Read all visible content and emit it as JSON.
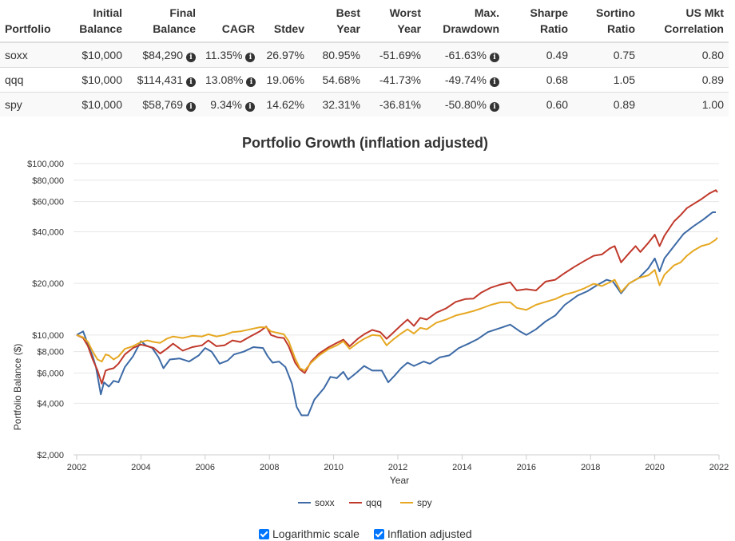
{
  "table": {
    "headers": [
      [
        "Portfolio"
      ],
      [
        "Initial",
        "Balance"
      ],
      [
        "Final",
        "Balance"
      ],
      [
        "CAGR"
      ],
      [
        "Stdev"
      ],
      [
        "Best",
        "Year"
      ],
      [
        "Worst",
        "Year"
      ],
      [
        "Max.",
        "Drawdown"
      ],
      [
        "Sharpe",
        "Ratio"
      ],
      [
        "Sortino",
        "Ratio"
      ],
      [
        "US Mkt",
        "Correlation"
      ]
    ],
    "rows": [
      {
        "portfolio": "soxx",
        "initial": "$10,000",
        "final": "$84,290",
        "cagr": "11.35%",
        "stdev": "26.97%",
        "best": "80.95%",
        "worst": "-51.69%",
        "drawdown": "-61.63%",
        "sharpe": "0.49",
        "sortino": "0.75",
        "corr": "0.80"
      },
      {
        "portfolio": "qqq",
        "initial": "$10,000",
        "final": "$114,431",
        "cagr": "13.08%",
        "stdev": "19.06%",
        "best": "54.68%",
        "worst": "-41.73%",
        "drawdown": "-49.74%",
        "sharpe": "0.68",
        "sortino": "1.05",
        "corr": "0.89"
      },
      {
        "portfolio": "spy",
        "initial": "$10,000",
        "final": "$58,769",
        "cagr": "9.34%",
        "stdev": "14.62%",
        "best": "32.31%",
        "worst": "-36.81%",
        "drawdown": "-50.80%",
        "sharpe": "0.60",
        "sortino": "0.89",
        "corr": "1.00"
      }
    ],
    "info_icon_glyph": "i"
  },
  "chart_data": {
    "type": "line",
    "title": "Portfolio Growth (inflation adjusted)",
    "xlabel": "Year",
    "ylabel": "Portfolio Balance ($)",
    "y_scale": "log",
    "ylim": [
      2000,
      100000
    ],
    "xlim": [
      2001.9,
      2022.0
    ],
    "x_ticks": [
      2002,
      2004,
      2006,
      2008,
      2010,
      2012,
      2014,
      2016,
      2018,
      2020,
      2022
    ],
    "y_ticks": [
      2000,
      4000,
      6000,
      8000,
      10000,
      20000,
      40000,
      60000,
      80000,
      100000
    ],
    "y_tick_labels": [
      "$2,000",
      "$4,000",
      "$6,000",
      "$8,000",
      "$10,000",
      "$20,000",
      "$40,000",
      "$60,000",
      "$80,000",
      "$100,000"
    ],
    "grid": true,
    "legend_position": "bottom",
    "series": [
      {
        "name": "soxx",
        "color": "#3d6aa6",
        "points": [
          [
            2002.0,
            10000
          ],
          [
            2002.2,
            10500
          ],
          [
            2002.35,
            8800
          ],
          [
            2002.5,
            7500
          ],
          [
            2002.6,
            6500
          ],
          [
            2002.75,
            4500
          ],
          [
            2002.85,
            5300
          ],
          [
            2003.0,
            5000
          ],
          [
            2003.15,
            5400
          ],
          [
            2003.3,
            5300
          ],
          [
            2003.5,
            6500
          ],
          [
            2003.75,
            7500
          ],
          [
            2004.0,
            9200
          ],
          [
            2004.15,
            8700
          ],
          [
            2004.35,
            8400
          ],
          [
            2004.55,
            7400
          ],
          [
            2004.7,
            6400
          ],
          [
            2004.9,
            7200
          ],
          [
            2005.2,
            7300
          ],
          [
            2005.5,
            7000
          ],
          [
            2005.8,
            7600
          ],
          [
            2006.0,
            8400
          ],
          [
            2006.2,
            8000
          ],
          [
            2006.45,
            6800
          ],
          [
            2006.7,
            7100
          ],
          [
            2006.9,
            7700
          ],
          [
            2007.2,
            8000
          ],
          [
            2007.5,
            8500
          ],
          [
            2007.8,
            8400
          ],
          [
            2007.95,
            7500
          ],
          [
            2008.1,
            6900
          ],
          [
            2008.3,
            7000
          ],
          [
            2008.5,
            6500
          ],
          [
            2008.7,
            5200
          ],
          [
            2008.85,
            3800
          ],
          [
            2009.0,
            3400
          ],
          [
            2009.2,
            3400
          ],
          [
            2009.4,
            4200
          ],
          [
            2009.7,
            4900
          ],
          [
            2009.9,
            5700
          ],
          [
            2010.1,
            5600
          ],
          [
            2010.3,
            6100
          ],
          [
            2010.45,
            5500
          ],
          [
            2010.7,
            6000
          ],
          [
            2010.95,
            6600
          ],
          [
            2011.2,
            6200
          ],
          [
            2011.5,
            6200
          ],
          [
            2011.7,
            5300
          ],
          [
            2011.9,
            5800
          ],
          [
            2012.1,
            6400
          ],
          [
            2012.3,
            6900
          ],
          [
            2012.5,
            6600
          ],
          [
            2012.8,
            7000
          ],
          [
            2013.0,
            6800
          ],
          [
            2013.3,
            7400
          ],
          [
            2013.6,
            7600
          ],
          [
            2013.9,
            8400
          ],
          [
            2014.2,
            8900
          ],
          [
            2014.5,
            9500
          ],
          [
            2014.8,
            10400
          ],
          [
            2015.2,
            11000
          ],
          [
            2015.5,
            11500
          ],
          [
            2015.8,
            10500
          ],
          [
            2016.0,
            10000
          ],
          [
            2016.3,
            10800
          ],
          [
            2016.6,
            12000
          ],
          [
            2016.9,
            13000
          ],
          [
            2017.2,
            15000
          ],
          [
            2017.6,
            17000
          ],
          [
            2017.9,
            18000
          ],
          [
            2018.2,
            19500
          ],
          [
            2018.5,
            21000
          ],
          [
            2018.7,
            20500
          ],
          [
            2018.95,
            17500
          ],
          [
            2019.2,
            20000
          ],
          [
            2019.5,
            21500
          ],
          [
            2019.8,
            24500
          ],
          [
            2020.0,
            28000
          ],
          [
            2020.15,
            23500
          ],
          [
            2020.3,
            28000
          ],
          [
            2020.6,
            33000
          ],
          [
            2020.9,
            39000
          ],
          [
            2021.2,
            43000
          ],
          [
            2021.5,
            47000
          ],
          [
            2021.8,
            52000
          ],
          [
            2021.9,
            52000
          ]
        ]
      },
      {
        "name": "qqq",
        "color": "#c0392b",
        "points": [
          [
            2002.0,
            10000
          ],
          [
            2002.2,
            9600
          ],
          [
            2002.35,
            8600
          ],
          [
            2002.5,
            7200
          ],
          [
            2002.65,
            6200
          ],
          [
            2002.78,
            5200
          ],
          [
            2002.9,
            6200
          ],
          [
            2003.0,
            6300
          ],
          [
            2003.15,
            6400
          ],
          [
            2003.3,
            6800
          ],
          [
            2003.5,
            7700
          ],
          [
            2003.75,
            8400
          ],
          [
            2004.0,
            8800
          ],
          [
            2004.2,
            8600
          ],
          [
            2004.4,
            8400
          ],
          [
            2004.6,
            7800
          ],
          [
            2004.8,
            8300
          ],
          [
            2005.0,
            8900
          ],
          [
            2005.3,
            8100
          ],
          [
            2005.6,
            8500
          ],
          [
            2005.9,
            8700
          ],
          [
            2006.1,
            9300
          ],
          [
            2006.35,
            8600
          ],
          [
            2006.6,
            8700
          ],
          [
            2006.85,
            9300
          ],
          [
            2007.1,
            9100
          ],
          [
            2007.4,
            9800
          ],
          [
            2007.7,
            10500
          ],
          [
            2007.9,
            11200
          ],
          [
            2008.05,
            10000
          ],
          [
            2008.25,
            9700
          ],
          [
            2008.45,
            9600
          ],
          [
            2008.6,
            8600
          ],
          [
            2008.8,
            6900
          ],
          [
            2008.95,
            6300
          ],
          [
            2009.1,
            6000
          ],
          [
            2009.3,
            7000
          ],
          [
            2009.55,
            7800
          ],
          [
            2009.85,
            8500
          ],
          [
            2010.1,
            9000
          ],
          [
            2010.3,
            9400
          ],
          [
            2010.5,
            8600
          ],
          [
            2010.75,
            9500
          ],
          [
            2010.95,
            10100
          ],
          [
            2011.2,
            10700
          ],
          [
            2011.45,
            10400
          ],
          [
            2011.65,
            9500
          ],
          [
            2011.85,
            10300
          ],
          [
            2012.1,
            11400
          ],
          [
            2012.3,
            12300
          ],
          [
            2012.5,
            11300
          ],
          [
            2012.7,
            12600
          ],
          [
            2012.9,
            12300
          ],
          [
            2013.2,
            13500
          ],
          [
            2013.5,
            14300
          ],
          [
            2013.8,
            15600
          ],
          [
            2014.1,
            16200
          ],
          [
            2014.35,
            16300
          ],
          [
            2014.6,
            17700
          ],
          [
            2014.9,
            18900
          ],
          [
            2015.2,
            19700
          ],
          [
            2015.5,
            20300
          ],
          [
            2015.7,
            18200
          ],
          [
            2016.0,
            18500
          ],
          [
            2016.3,
            18200
          ],
          [
            2016.6,
            20500
          ],
          [
            2016.9,
            21000
          ],
          [
            2017.2,
            23000
          ],
          [
            2017.5,
            25000
          ],
          [
            2017.8,
            27000
          ],
          [
            2018.1,
            29000
          ],
          [
            2018.35,
            29500
          ],
          [
            2018.6,
            32000
          ],
          [
            2018.75,
            33000
          ],
          [
            2018.95,
            26500
          ],
          [
            2019.2,
            30000
          ],
          [
            2019.4,
            33000
          ],
          [
            2019.55,
            30500
          ],
          [
            2019.8,
            34500
          ],
          [
            2020.0,
            38500
          ],
          [
            2020.15,
            33000
          ],
          [
            2020.3,
            38000
          ],
          [
            2020.6,
            46000
          ],
          [
            2020.8,
            50000
          ],
          [
            2021.0,
            55000
          ],
          [
            2021.2,
            58000
          ],
          [
            2021.45,
            62000
          ],
          [
            2021.7,
            67000
          ],
          [
            2021.9,
            70000
          ],
          [
            2021.95,
            68000
          ]
        ]
      },
      {
        "name": "spy",
        "color": "#e6a822",
        "points": [
          [
            2002.0,
            10000
          ],
          [
            2002.2,
            9700
          ],
          [
            2002.35,
            9100
          ],
          [
            2002.5,
            8000
          ],
          [
            2002.65,
            7200
          ],
          [
            2002.78,
            7000
          ],
          [
            2002.9,
            7700
          ],
          [
            2003.0,
            7600
          ],
          [
            2003.15,
            7200
          ],
          [
            2003.3,
            7500
          ],
          [
            2003.5,
            8300
          ],
          [
            2003.75,
            8600
          ],
          [
            2004.0,
            9100
          ],
          [
            2004.2,
            9300
          ],
          [
            2004.4,
            9100
          ],
          [
            2004.6,
            9000
          ],
          [
            2004.8,
            9500
          ],
          [
            2005.0,
            9800
          ],
          [
            2005.3,
            9600
          ],
          [
            2005.6,
            9900
          ],
          [
            2005.9,
            9800
          ],
          [
            2006.1,
            10100
          ],
          [
            2006.35,
            9800
          ],
          [
            2006.6,
            10000
          ],
          [
            2006.85,
            10400
          ],
          [
            2007.1,
            10500
          ],
          [
            2007.4,
            10800
          ],
          [
            2007.7,
            11100
          ],
          [
            2007.9,
            11100
          ],
          [
            2008.05,
            10500
          ],
          [
            2008.25,
            10300
          ],
          [
            2008.45,
            10100
          ],
          [
            2008.6,
            9200
          ],
          [
            2008.8,
            7300
          ],
          [
            2008.95,
            6400
          ],
          [
            2009.1,
            6200
          ],
          [
            2009.3,
            6900
          ],
          [
            2009.55,
            7600
          ],
          [
            2009.85,
            8300
          ],
          [
            2010.1,
            8700
          ],
          [
            2010.3,
            9200
          ],
          [
            2010.5,
            8300
          ],
          [
            2010.75,
            9000
          ],
          [
            2010.95,
            9500
          ],
          [
            2011.2,
            10000
          ],
          [
            2011.45,
            9900
          ],
          [
            2011.65,
            8700
          ],
          [
            2011.85,
            9400
          ],
          [
            2012.1,
            10200
          ],
          [
            2012.3,
            10800
          ],
          [
            2012.5,
            10200
          ],
          [
            2012.7,
            11000
          ],
          [
            2012.9,
            10800
          ],
          [
            2013.2,
            11800
          ],
          [
            2013.5,
            12300
          ],
          [
            2013.8,
            13000
          ],
          [
            2014.1,
            13400
          ],
          [
            2014.35,
            13800
          ],
          [
            2014.6,
            14300
          ],
          [
            2014.9,
            15000
          ],
          [
            2015.2,
            15500
          ],
          [
            2015.5,
            15500
          ],
          [
            2015.7,
            14400
          ],
          [
            2016.0,
            14000
          ],
          [
            2016.3,
            15000
          ],
          [
            2016.6,
            15600
          ],
          [
            2016.9,
            16200
          ],
          [
            2017.2,
            17200
          ],
          [
            2017.5,
            17800
          ],
          [
            2017.8,
            18700
          ],
          [
            2018.1,
            19900
          ],
          [
            2018.35,
            19300
          ],
          [
            2018.6,
            20300
          ],
          [
            2018.75,
            21000
          ],
          [
            2018.95,
            17800
          ],
          [
            2019.2,
            20000
          ],
          [
            2019.5,
            21500
          ],
          [
            2019.8,
            22300
          ],
          [
            2020.0,
            24000
          ],
          [
            2020.15,
            19500
          ],
          [
            2020.3,
            22500
          ],
          [
            2020.6,
            25500
          ],
          [
            2020.8,
            26500
          ],
          [
            2021.0,
            29000
          ],
          [
            2021.2,
            31000
          ],
          [
            2021.45,
            33000
          ],
          [
            2021.7,
            34000
          ],
          [
            2021.9,
            36000
          ],
          [
            2021.95,
            37000
          ]
        ]
      }
    ]
  },
  "controls": {
    "log_scale_label": "Logarithmic scale",
    "inflation_label": "Inflation adjusted"
  }
}
